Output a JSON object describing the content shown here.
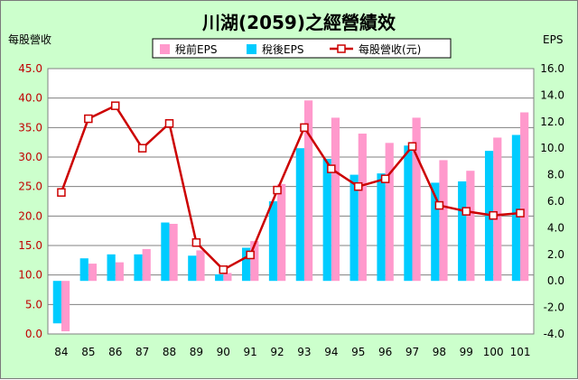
{
  "chart_data": {
    "type": "bar",
    "title": "川湖(2059)之經營績效",
    "ylabel_left": "每股營收",
    "ylabel_right": "EPS",
    "categories": [
      "84",
      "85",
      "86",
      "87",
      "88",
      "89",
      "90",
      "91",
      "92",
      "93",
      "94",
      "95",
      "96",
      "97",
      "98",
      "99",
      "100",
      "101"
    ],
    "ylim_left": [
      0,
      45
    ],
    "ylim_right": [
      -4,
      16
    ],
    "ticks_left": [
      "0.0",
      "5.0",
      "10.0",
      "15.0",
      "20.0",
      "25.0",
      "30.0",
      "35.0",
      "40.0",
      "45.0"
    ],
    "ticks_right": [
      "-4.0",
      "-2.0",
      "0.0",
      "2.0",
      "4.0",
      "6.0",
      "8.0",
      "10.0",
      "12.0",
      "14.0",
      "16.0"
    ],
    "grid": true,
    "legend_position": "top",
    "series": [
      {
        "name": "稅前EPS",
        "axis": "right",
        "kind": "bar",
        "color": "#ff99cc",
        "values": [
          -3.8,
          1.3,
          1.4,
          2.4,
          4.3,
          2.3,
          0.6,
          3.0,
          7.3,
          13.6,
          12.3,
          11.1,
          10.4,
          12.3,
          9.1,
          8.3,
          10.8,
          12.7
        ]
      },
      {
        "name": "稅後EPS",
        "axis": "right",
        "kind": "bar",
        "color": "#00ccff",
        "values": [
          -3.2,
          1.7,
          2.0,
          2.0,
          4.4,
          1.9,
          0.5,
          2.5,
          6.0,
          10.0,
          9.2,
          8.0,
          8.1,
          10.2,
          7.4,
          7.5,
          9.8,
          11.0
        ]
      },
      {
        "name": "每股營收(元)",
        "axis": "left",
        "kind": "line",
        "color": "#cc0000",
        "values": [
          24.0,
          36.5,
          38.7,
          31.5,
          35.7,
          15.5,
          10.9,
          13.4,
          24.4,
          35.0,
          28.0,
          25.0,
          26.3,
          31.8,
          21.8,
          20.8,
          20.1,
          20.5
        ]
      }
    ]
  }
}
